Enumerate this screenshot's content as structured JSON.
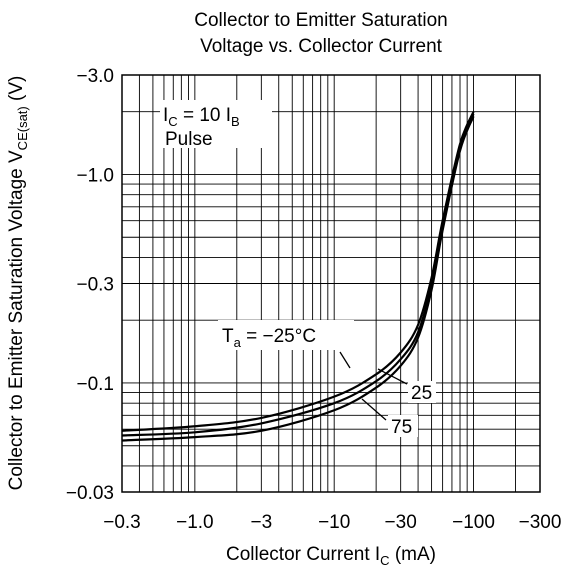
{
  "chart_data": {
    "type": "line",
    "title_line1": "Collector to Emitter Saturation",
    "title_line2": "Voltage vs. Collector Current",
    "xlabel": {
      "main": "Collector Current  I",
      "sub": "C",
      "unit": "  (mA)"
    },
    "ylabel": {
      "main": "Collector to Emitter Saturation Voltage  V",
      "sub": "CE(sat)",
      "unit": "  (V)"
    },
    "x_scale": "log",
    "y_scale": "log",
    "xlim": [
      -0.3,
      -300
    ],
    "ylim": [
      -0.03,
      -3.0
    ],
    "x_ticks": [
      {
        "value": -0.3,
        "label": "−0.3"
      },
      {
        "value": -1.0,
        "label": "−1.0"
      },
      {
        "value": -3,
        "label": "−3"
      },
      {
        "value": -10,
        "label": "−10"
      },
      {
        "value": -30,
        "label": "−30"
      },
      {
        "value": -100,
        "label": "−100"
      },
      {
        "value": -300,
        "label": "−300"
      }
    ],
    "y_ticks": [
      {
        "value": -3.0,
        "label": "−3.0"
      },
      {
        "value": -1.0,
        "label": "−1.0"
      },
      {
        "value": -0.3,
        "label": "−0.3"
      },
      {
        "value": -0.1,
        "label": "−0.1"
      },
      {
        "value": -0.03,
        "label": "−0.03"
      }
    ],
    "grid": true,
    "conditions": {
      "line1_main": "I",
      "line1_sub": "C",
      "line1_mid": " = 10 I",
      "line1_sub2": "B",
      "line2": "Pulse"
    },
    "series": [
      {
        "name": "T_a = −25°C",
        "x": [
          -0.3,
          -1,
          -3,
          -10,
          -20,
          -30,
          -40,
          -50,
          -60,
          -80,
          -100
        ],
        "y": [
          -0.059,
          -0.062,
          -0.068,
          -0.086,
          -0.11,
          -0.14,
          -0.19,
          -0.32,
          -0.6,
          -1.4,
          -2.0
        ]
      },
      {
        "name": "25",
        "x": [
          -0.3,
          -1,
          -3,
          -10,
          -20,
          -30,
          -40,
          -50,
          -60,
          -80,
          -100
        ],
        "y": [
          -0.056,
          -0.058,
          -0.064,
          -0.08,
          -0.102,
          -0.13,
          -0.175,
          -0.3,
          -0.57,
          -1.35,
          -1.95
        ]
      },
      {
        "name": "75",
        "x": [
          -0.3,
          -1,
          -3,
          -10,
          -20,
          -30,
          -40,
          -50,
          -60,
          -80,
          -100
        ],
        "y": [
          -0.053,
          -0.055,
          -0.059,
          -0.074,
          -0.095,
          -0.121,
          -0.165,
          -0.28,
          -0.54,
          -1.3,
          -1.9
        ]
      }
    ],
    "annotations": [
      {
        "main": "T",
        "sub": "a",
        "rest": " = −25°C"
      },
      {
        "text": "25"
      },
      {
        "text": "75"
      }
    ]
  }
}
